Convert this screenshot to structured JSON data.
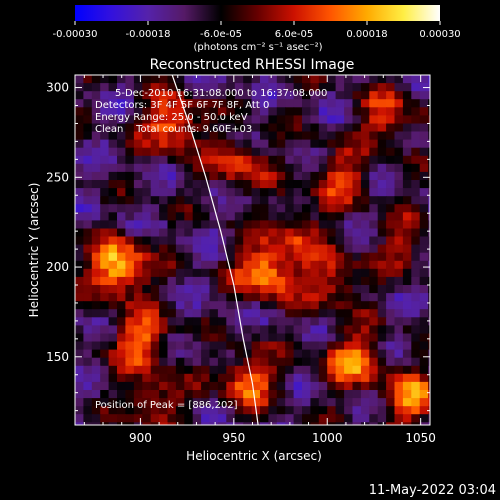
{
  "chart_data": {
    "type": "heatmap",
    "title": "Reconstructed RHESSI Image",
    "xlabel": "Heliocentric X (arcsec)",
    "ylabel": "Heliocentric Y (arcsec)",
    "xlim": [
      865,
      1055
    ],
    "ylim": [
      112,
      307
    ],
    "x_ticks": [
      900,
      950,
      1000,
      1050
    ],
    "x_tick_labels": [
      "900",
      "950",
      "1000",
      "1050"
    ],
    "y_ticks": [
      150,
      200,
      250,
      300
    ],
    "y_tick_labels": [
      "150",
      "200",
      "250",
      "300"
    ],
    "colorbar": {
      "range": [
        -0.0003,
        0.0003
      ],
      "tick_labels": [
        "-0.00030",
        "-0.00018",
        "-6.0e-05",
        "6.0e-05",
        "0.00018",
        "0.00030"
      ],
      "units": "(photons cm⁻² s⁻¹ asec⁻²)",
      "colormap": [
        "#0000ff",
        "#3311dd",
        "#5522aa",
        "#551a66",
        "#000000",
        "#660000",
        "#cc1100",
        "#ff5500",
        "#ffaa00",
        "#ffee44",
        "#ffffff"
      ]
    },
    "annotations": {
      "time_range": "5-Dec-2010 16:31:08.000 to 16:37:08.000",
      "detectors": "Detectors: 3F 4F 5F 6F 7F 8F, Att 0",
      "energy_range": "Energy Range: 25.0 - 50.0 keV",
      "clean": "Clean    Total counts: 9.60E+03",
      "peak": "Position of Peak = [886,202]"
    },
    "peak_position": [
      886,
      202
    ],
    "bright_sources": [
      {
        "x": 886,
        "y": 202,
        "intensity": 1.0
      },
      {
        "x": 915,
        "y": 282,
        "intensity": 0.75
      },
      {
        "x": 952,
        "y": 260,
        "intensity": 0.55
      },
      {
        "x": 965,
        "y": 200,
        "intensity": 0.85
      },
      {
        "x": 1000,
        "y": 195,
        "intensity": 0.6
      },
      {
        "x": 1005,
        "y": 252,
        "intensity": 0.55
      },
      {
        "x": 1030,
        "y": 285,
        "intensity": 0.55
      },
      {
        "x": 898,
        "y": 162,
        "intensity": 0.7
      },
      {
        "x": 955,
        "y": 140,
        "intensity": 0.7
      },
      {
        "x": 1012,
        "y": 150,
        "intensity": 0.75
      },
      {
        "x": 1045,
        "y": 128,
        "intensity": 0.7
      },
      {
        "x": 905,
        "y": 128,
        "intensity": 0.5
      },
      {
        "x": 980,
        "y": 222,
        "intensity": 0.45
      },
      {
        "x": 1040,
        "y": 215,
        "intensity": 0.4
      }
    ],
    "limb": [
      [
        917,
        307
      ],
      [
        926,
        280
      ],
      [
        935,
        250
      ],
      [
        943,
        220
      ],
      [
        950,
        190
      ],
      [
        955,
        160
      ],
      [
        960,
        135
      ],
      [
        963,
        112
      ]
    ]
  },
  "timestamp": "11-May-2022 03:04"
}
